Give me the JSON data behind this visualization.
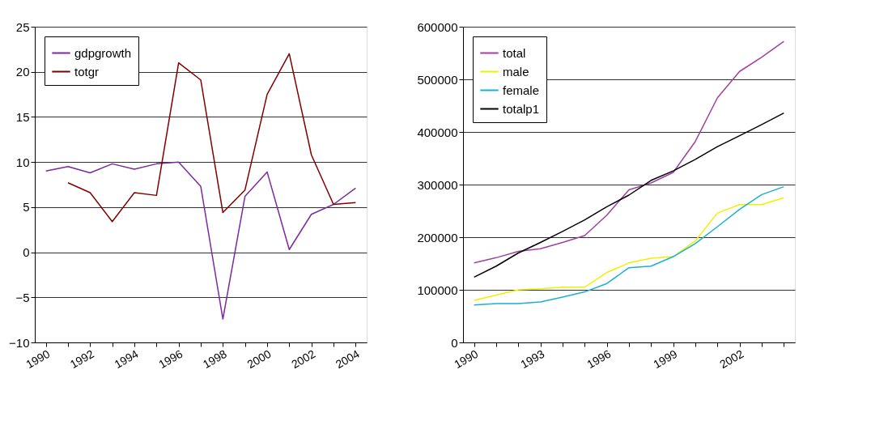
{
  "chart_data": [
    {
      "type": "line",
      "categories": [
        "1990",
        null,
        "1992",
        null,
        "1994",
        null,
        "1996",
        null,
        "1998",
        null,
        "2000",
        null,
        "2002",
        null,
        "2004"
      ],
      "series": [
        {
          "name": "gdpgrowth",
          "color": "#7b2a9b",
          "values": [
            9.0,
            9.5,
            8.8,
            9.8,
            9.2,
            9.8,
            10.0,
            7.3,
            -7.4,
            6.2,
            8.9,
            0.3,
            4.2,
            5.3,
            7.1
          ]
        },
        {
          "name": "totgr",
          "color": "#800000",
          "values": [
            null,
            7.7,
            6.6,
            3.4,
            6.6,
            6.3,
            21.0,
            19.1,
            4.4,
            6.9,
            17.5,
            22.0,
            10.8,
            5.3,
            5.5
          ]
        }
      ],
      "ylim": [
        -10,
        25
      ],
      "yticks": [
        -10,
        -5,
        0,
        5,
        10,
        15,
        20,
        25
      ],
      "grid": "y",
      "legend": "top left"
    },
    {
      "type": "line",
      "categories": [
        "1990",
        null,
        null,
        "1993",
        null,
        null,
        "1996",
        null,
        null,
        "1999",
        null,
        null,
        "2002",
        null,
        null
      ],
      "series": [
        {
          "name": "total",
          "color": "#a040a0",
          "values": [
            151000,
            161000,
            173000,
            178000,
            190000,
            203000,
            242000,
            290000,
            303000,
            323000,
            382000,
            465000,
            515000,
            542000,
            572000
          ]
        },
        {
          "name": "male",
          "color": "#f0f000",
          "values": [
            80000,
            90000,
            100000,
            102000,
            105000,
            105000,
            133000,
            151000,
            160000,
            163000,
            193000,
            246000,
            262000,
            262000,
            275000
          ]
        },
        {
          "name": "female",
          "color": "#1ab0d0",
          "values": [
            71000,
            74000,
            74000,
            77000,
            86000,
            96000,
            112000,
            142000,
            145000,
            163000,
            188000,
            220000,
            253000,
            281000,
            296000
          ]
        },
        {
          "name": "totalp1",
          "color": "#000000",
          "values": [
            124000,
            145000,
            170000,
            190000,
            211000,
            233000,
            258000,
            280000,
            308000,
            326000,
            348000,
            372000,
            393000,
            414000,
            436000
          ]
        }
      ],
      "ylim": [
        0,
        600000
      ],
      "yticks": [
        0,
        100000,
        200000,
        300000,
        400000,
        500000,
        600000
      ],
      "grid": "y",
      "legend": "top left"
    }
  ]
}
